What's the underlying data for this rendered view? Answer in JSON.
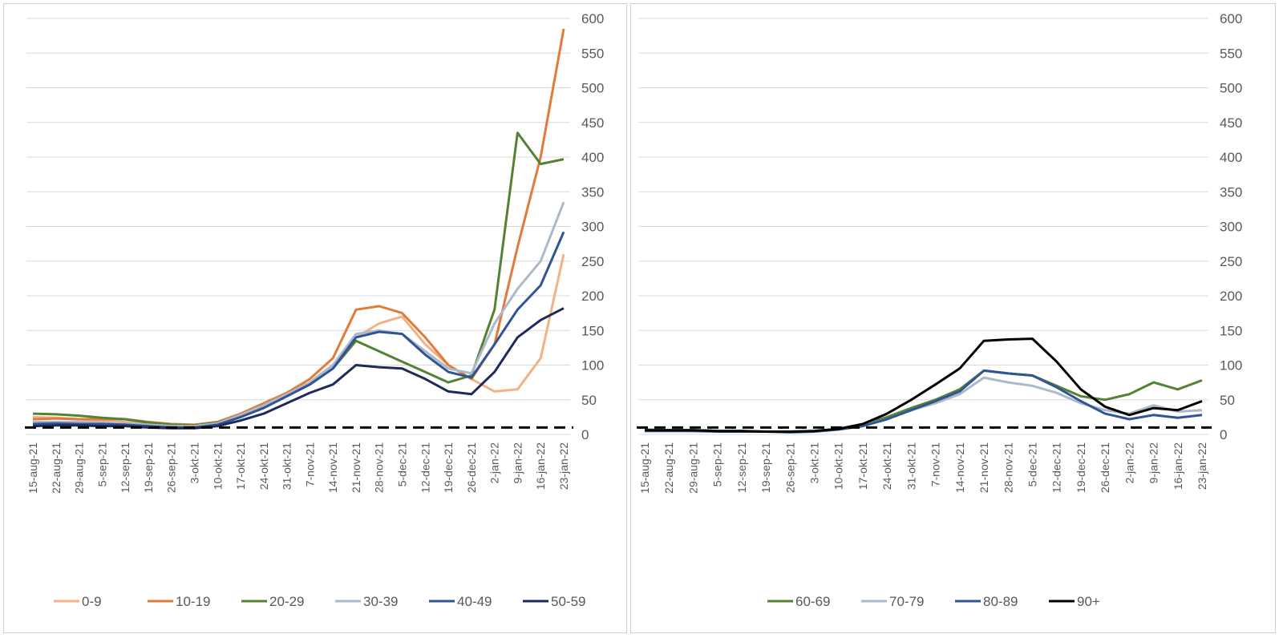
{
  "chart_data": [
    {
      "type": "line",
      "title": "",
      "xlabel": "",
      "ylabel": "",
      "ylim": [
        0,
        600
      ],
      "yticks": [
        0,
        50,
        100,
        150,
        200,
        250,
        300,
        350,
        400,
        450,
        500,
        550,
        600
      ],
      "y_axis_side": "right",
      "grid": true,
      "legend": "bottom",
      "reference_line": {
        "y": 10,
        "style": "dashed",
        "color": "#000000"
      },
      "x_tick_labels": [
        "15-aug-21",
        "22-aug-21",
        "29-aug-21",
        "5-sep-21",
        "12-sep-21",
        "19-sep-21",
        "26-sep-21",
        "3-okt-21",
        "10-okt-21",
        "17-okt-21",
        "24-okt-21",
        "31-okt-21",
        "7-nov-21",
        "14-nov-21",
        "21-nov-21",
        "28-nov-21",
        "5-dec-21",
        "12-dec-21",
        "19-dec-21",
        "26-dec-21",
        "2-jan-22",
        "9-jan-22",
        "16-jan-22",
        "23-jan-22"
      ],
      "x": [
        "15-aug-21",
        "22-aug-21",
        "29-aug-21",
        "5-sep-21",
        "12-sep-21",
        "19-sep-21",
        "26-sep-21",
        "3-okt-21",
        "10-okt-21",
        "17-okt-21",
        "24-okt-21",
        "31-okt-21",
        "7-nov-21",
        "14-nov-21",
        "21-nov-21",
        "28-nov-21",
        "5-dec-21",
        "12-dec-21",
        "19-dec-21",
        "26-dec-21",
        "2-jan-22",
        "9-jan-22",
        "16-jan-22",
        "23-jan-22"
      ],
      "series": [
        {
          "name": "0-9",
          "color": "#f4b183",
          "values": [
            25,
            24,
            22,
            20,
            18,
            15,
            14,
            13,
            15,
            25,
            40,
            55,
            75,
            100,
            140,
            160,
            170,
            130,
            100,
            80,
            62,
            65,
            110,
            260
          ]
        },
        {
          "name": "10-19",
          "color": "#e07b39",
          "values": [
            22,
            23,
            22,
            22,
            22,
            18,
            15,
            14,
            18,
            30,
            45,
            60,
            80,
            110,
            180,
            185,
            175,
            140,
            100,
            80,
            130,
            270,
            400,
            585
          ]
        },
        {
          "name": "20-29",
          "color": "#548235",
          "values": [
            30,
            29,
            27,
            24,
            22,
            17,
            14,
            13,
            17,
            27,
            40,
            55,
            72,
            95,
            135,
            120,
            105,
            90,
            75,
            85,
            180,
            435,
            390,
            397
          ]
        },
        {
          "name": "30-39",
          "color": "#adb9ca",
          "values": [
            18,
            18,
            18,
            17,
            16,
            14,
            12,
            12,
            16,
            28,
            42,
            58,
            75,
            100,
            145,
            150,
            145,
            120,
            95,
            88,
            160,
            210,
            250,
            335
          ]
        },
        {
          "name": "40-49",
          "color": "#2f5597",
          "values": [
            15,
            16,
            15,
            15,
            14,
            12,
            10,
            10,
            14,
            25,
            38,
            55,
            72,
            95,
            140,
            148,
            145,
            115,
            90,
            82,
            130,
            180,
            215,
            292
          ]
        },
        {
          "name": "50-59",
          "color": "#1f2a5c",
          "values": [
            12,
            13,
            13,
            12,
            12,
            10,
            9,
            9,
            12,
            20,
            30,
            45,
            60,
            72,
            100,
            97,
            95,
            80,
            62,
            58,
            90,
            140,
            165,
            182
          ]
        }
      ]
    },
    {
      "type": "line",
      "title": "",
      "xlabel": "",
      "ylabel": "",
      "ylim": [
        0,
        600
      ],
      "yticks": [
        0,
        50,
        100,
        150,
        200,
        250,
        300,
        350,
        400,
        450,
        500,
        550,
        600
      ],
      "y_axis_side": "right",
      "grid": true,
      "legend": "bottom",
      "reference_line": {
        "y": 10,
        "style": "dashed",
        "color": "#000000"
      },
      "x_tick_labels": [
        "15-aug-21",
        "22-aug-21",
        "29-aug-21",
        "5-sep-21",
        "12-sep-21",
        "19-sep-21",
        "26-sep-21",
        "3-okt-21",
        "10-okt-21",
        "17-okt-21",
        "24-okt-21",
        "31-okt-21",
        "7-nov-21",
        "14-nov-21",
        "21-nov-21",
        "28-nov-21",
        "5-dec-21",
        "12-dec-21",
        "19-dec-21",
        "26-dec-21",
        "2-jan-22",
        "9-jan-22",
        "16-jan-22",
        "23-jan-22"
      ],
      "x": [
        "15-aug-21",
        "22-aug-21",
        "29-aug-21",
        "5-sep-21",
        "12-sep-21",
        "19-sep-21",
        "26-sep-21",
        "3-okt-21",
        "10-okt-21",
        "17-okt-21",
        "24-okt-21",
        "31-okt-21",
        "7-nov-21",
        "14-nov-21",
        "21-nov-21",
        "28-nov-21",
        "5-dec-21",
        "12-dec-21",
        "19-dec-21",
        "26-dec-21",
        "2-jan-22",
        "9-jan-22",
        "16-jan-22",
        "23-jan-22"
      ],
      "series": [
        {
          "name": "60-69",
          "color": "#548235",
          "values": [
            7,
            6,
            6,
            5,
            5,
            4,
            4,
            5,
            8,
            14,
            25,
            38,
            50,
            65,
            92,
            88,
            85,
            70,
            55,
            50,
            58,
            75,
            65,
            78
          ]
        },
        {
          "name": "70-79",
          "color": "#adb9ca",
          "values": [
            6,
            6,
            5,
            5,
            4,
            4,
            4,
            5,
            8,
            13,
            22,
            35,
            45,
            58,
            82,
            75,
            70,
            60,
            45,
            35,
            30,
            42,
            33,
            35
          ]
        },
        {
          "name": "80-89",
          "color": "#2f5597",
          "values": [
            5,
            5,
            5,
            4,
            4,
            4,
            3,
            4,
            7,
            12,
            22,
            35,
            48,
            62,
            92,
            88,
            85,
            68,
            48,
            30,
            22,
            28,
            24,
            28
          ]
        },
        {
          "name": "90+",
          "color": "#000000",
          "values": [
            6,
            6,
            6,
            5,
            5,
            4,
            4,
            5,
            8,
            15,
            30,
            50,
            72,
            95,
            135,
            137,
            138,
            105,
            65,
            40,
            28,
            38,
            35,
            48
          ]
        }
      ]
    }
  ]
}
